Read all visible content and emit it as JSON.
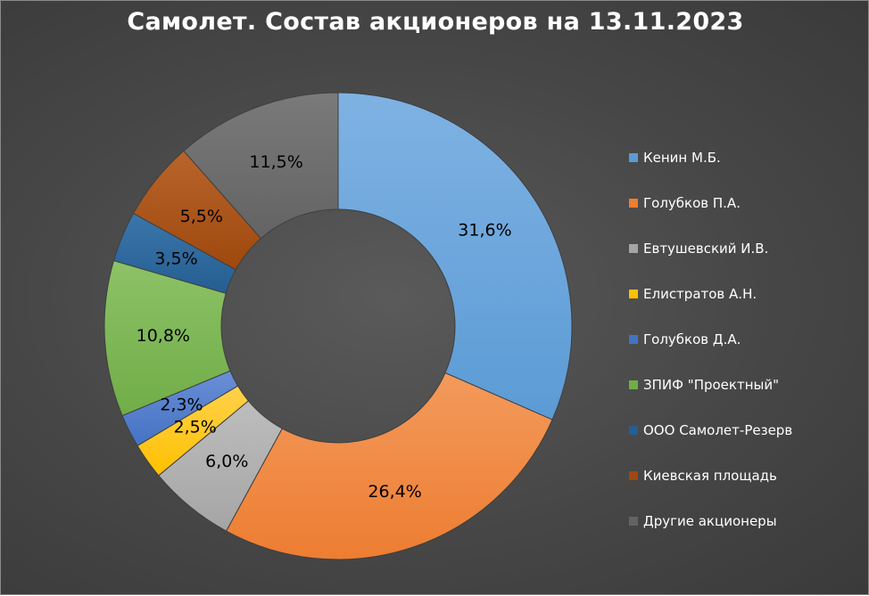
{
  "chart_data": {
    "type": "pie",
    "variant": "donut",
    "title": "Самолет. Состав акционеров на 13.11.2023",
    "legend_position": "right",
    "categories": [
      "Кенин М.Б.",
      "Голубков П.А.",
      "Евтушевский И.В.",
      "Елистратов А.Н.",
      "Голубков Д.А.",
      "ЗПИФ \"Проектный\"",
      "ООО Самолет-Резерв",
      "Киевская площадь",
      "Другие акционеры"
    ],
    "values": [
      31.6,
      26.4,
      6.0,
      2.5,
      2.3,
      10.8,
      3.5,
      5.5,
      11.5
    ],
    "data_labels": [
      "31,6%",
      "26,4%",
      "6,0%",
      "2,5%",
      "2,3%",
      "10,8%",
      "3,5%",
      "5,5%",
      "11,5%"
    ],
    "colors": [
      "#5b9bd5",
      "#ed7d31",
      "#a5a5a5",
      "#ffc000",
      "#4472c4",
      "#70ad47",
      "#255e91",
      "#9e480e",
      "#636363"
    ],
    "colors_light": [
      "#7fb2e3",
      "#f39a5c",
      "#bdbdbd",
      "#ffd24d",
      "#6a8fd6",
      "#8dc267",
      "#3b76ab",
      "#b8642a",
      "#7a7a7a"
    ]
  }
}
